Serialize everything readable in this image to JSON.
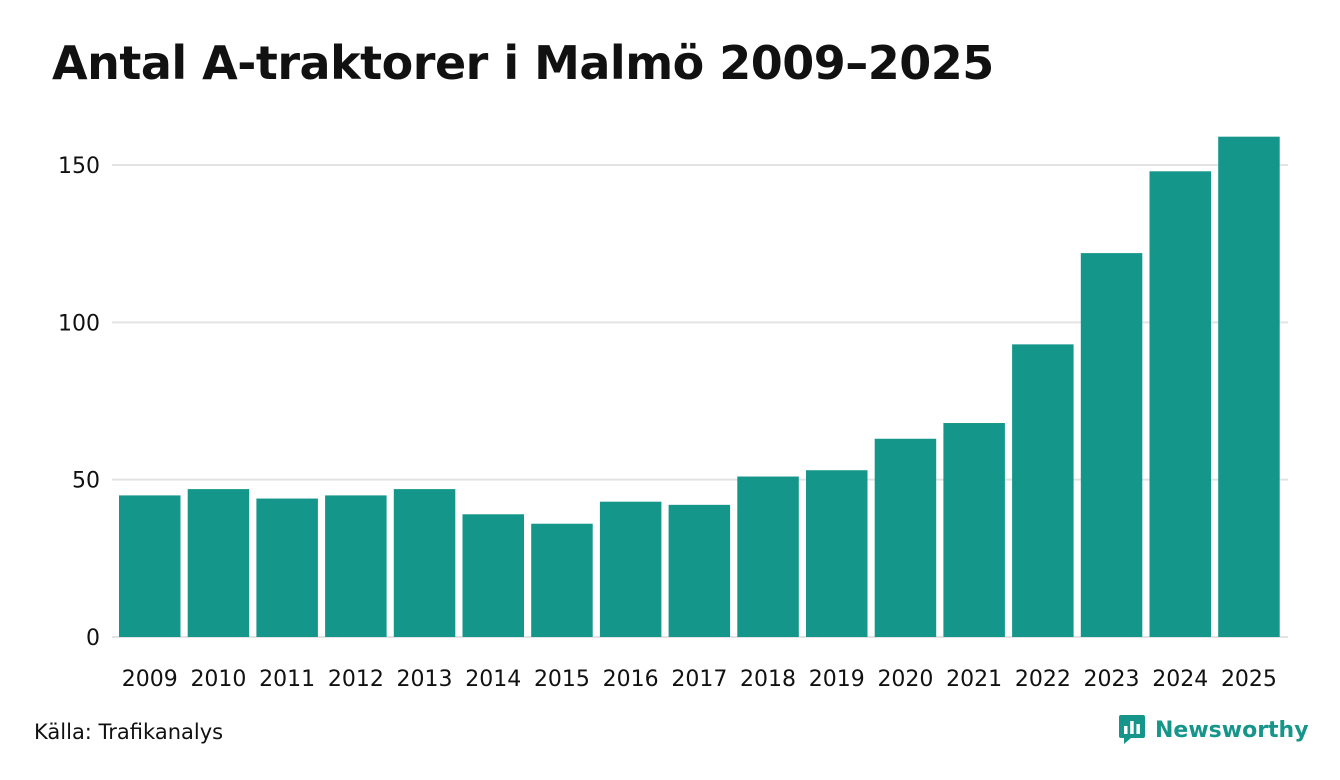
{
  "title": "Antal A-traktorer i Malmö 2009–2025",
  "source": "Källa: Trafikanalys",
  "brand": {
    "name": "Newsworthy",
    "icon": "newsworthy-logo-icon",
    "color": "#16968a"
  },
  "colors": {
    "bar": "#14968a",
    "grid": "#e3e3e3",
    "text": "#111111"
  },
  "chart_data": {
    "type": "bar",
    "title": "Antal A-traktorer i Malmö 2009–2025",
    "xlabel": "",
    "ylabel": "",
    "categories": [
      "2009",
      "2010",
      "2011",
      "2012",
      "2013",
      "2014",
      "2015",
      "2016",
      "2017",
      "2018",
      "2019",
      "2020",
      "2021",
      "2022",
      "2023",
      "2024",
      "2025"
    ],
    "values": [
      45,
      47,
      44,
      45,
      47,
      39,
      36,
      43,
      42,
      51,
      53,
      63,
      68,
      93,
      122,
      148,
      159
    ],
    "ylim": [
      0,
      165
    ],
    "yticks": [
      0,
      50,
      100,
      150
    ],
    "grid": true,
    "legend": "none"
  }
}
